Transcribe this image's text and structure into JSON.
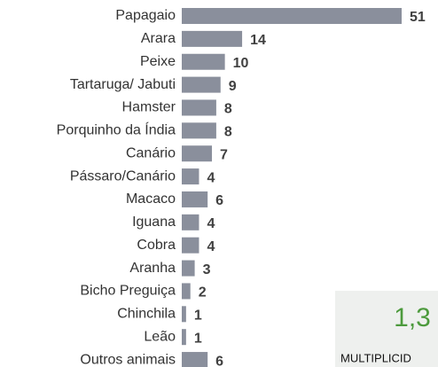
{
  "chart_data": {
    "type": "bar",
    "orientation": "horizontal",
    "categories": [
      "Papagaio",
      "Arara",
      "Peixe",
      "Tartaruga/ Jabuti",
      "Hamster",
      "Porquinho da Índia",
      "Canário",
      "Pássaro/Canário",
      "Macaco",
      "Iguana",
      "Cobra",
      "Aranha",
      "Bicho Preguiça",
      "Chinchila",
      "Leão",
      "Outros animais"
    ],
    "values": [
      51,
      14,
      10,
      9,
      8,
      8,
      7,
      4,
      6,
      4,
      4,
      3,
      2,
      1,
      1,
      6
    ],
    "color": "#8a8f9c"
  },
  "badge": {
    "value": "1,3",
    "label": "MULTIPLICID"
  }
}
